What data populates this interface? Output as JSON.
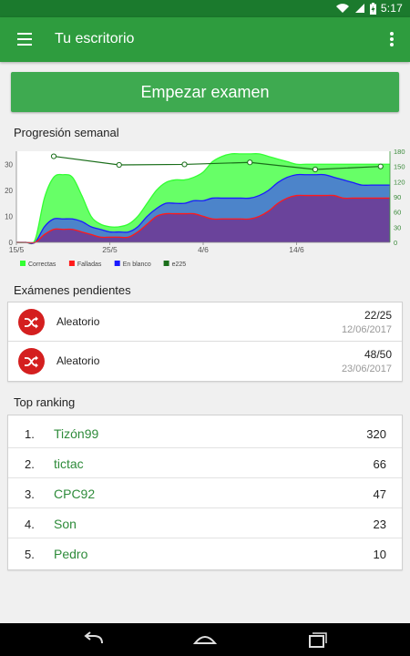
{
  "status_bar": {
    "time": "5:17",
    "battery_icon": "battery-charging-icon",
    "wifi_icon": "wifi-icon",
    "signal_icon": "signal-icon"
  },
  "app_bar": {
    "title": "Tu escritorio",
    "menu_icon": "hamburger-menu-icon",
    "overflow_icon": "more-vertical-icon"
  },
  "start_button": {
    "label": "Empezar examen"
  },
  "colors": {
    "status_bar": "#1b7a2d",
    "app_bar": "#2e9c3e",
    "button": "#3eaa50",
    "accent_red": "#d41f1f",
    "rank_green": "#2e8b3a"
  },
  "progress": {
    "title": "Progresión semanal",
    "chart_data": {
      "type": "area",
      "x": [
        0,
        1,
        2,
        3,
        4,
        5,
        6,
        7,
        8,
        9,
        10,
        11,
        12,
        13,
        14,
        15,
        16,
        17,
        18,
        19,
        20,
        21,
        22,
        23,
        24,
        25,
        26,
        27,
        28,
        29,
        30,
        31,
        32,
        33,
        34,
        35,
        36,
        37,
        38,
        39,
        40
      ],
      "x_ticks": [
        {
          "x": 0,
          "label": "15/5"
        },
        {
          "x": 10,
          "label": "25/5"
        },
        {
          "x": 20,
          "label": "4/6"
        },
        {
          "x": 30,
          "label": "14/6"
        }
      ],
      "ylim_left": [
        0,
        35
      ],
      "y_ticks_left": [
        0,
        10,
        20,
        30
      ],
      "ylim_right": [
        0,
        180
      ],
      "y_ticks_right": [
        0,
        30,
        60,
        90,
        120,
        150,
        180
      ],
      "series": [
        {
          "name": "Correctas",
          "color": "#33ff33",
          "axis": "left",
          "values": [
            0,
            0,
            1,
            17,
            25,
            26,
            25,
            18,
            10,
            7,
            6,
            6,
            7,
            10,
            15,
            20,
            23,
            24,
            24,
            25,
            27,
            31,
            33,
            34,
            34,
            34,
            34,
            33,
            32,
            31,
            30,
            30,
            30,
            30,
            30,
            30,
            30,
            30,
            30,
            30,
            30
          ]
        },
        {
          "name": "En blanco",
          "color": "#1a1aff",
          "axis": "left",
          "values": [
            0,
            0,
            0,
            6,
            9,
            9,
            9,
            8,
            6,
            5,
            4,
            4,
            4,
            6,
            10,
            13,
            15,
            15,
            15,
            16,
            16,
            17,
            17,
            17,
            17,
            17,
            18,
            20,
            23,
            25,
            26,
            26,
            26,
            26,
            25,
            24,
            23,
            22,
            22,
            22,
            22
          ]
        },
        {
          "name": "Falladas",
          "color": "#ff1a1a",
          "axis": "left",
          "values": [
            0,
            0,
            0,
            3,
            5,
            5,
            5,
            4,
            3,
            2,
            2,
            2,
            2,
            4,
            7,
            10,
            11,
            11,
            11,
            11,
            10,
            9,
            9,
            9,
            9,
            9,
            10,
            12,
            15,
            17,
            18,
            18,
            18,
            18,
            18,
            17,
            17,
            17,
            17,
            17,
            17
          ]
        },
        {
          "name": "e225",
          "color": "#1a6e1a",
          "axis": "right",
          "markers": true,
          "points": [
            [
              4,
              170
            ],
            [
              11,
              153
            ],
            [
              18,
              154
            ],
            [
              25,
              158
            ],
            [
              32,
              144
            ],
            [
              39,
              150
            ]
          ]
        }
      ],
      "legend": [
        "Correctas",
        "Falladas",
        "En blanco",
        "e225"
      ],
      "legend_position": "bottom-left",
      "grid": false
    }
  },
  "pending_exams": {
    "title": "Exámenes pendientes",
    "icon": "shuffle-icon",
    "items": [
      {
        "name": "Aleatorio",
        "count": "22/25",
        "date": "12/06/2017"
      },
      {
        "name": "Aleatorio",
        "count": "48/50",
        "date": "23/06/2017"
      }
    ]
  },
  "ranking": {
    "title": "Top ranking",
    "items": [
      {
        "pos": "1.",
        "name": "Tizón99",
        "score": "320"
      },
      {
        "pos": "2.",
        "name": "tictac",
        "score": "66"
      },
      {
        "pos": "3.",
        "name": "CPC92",
        "score": "47"
      },
      {
        "pos": "4.",
        "name": "Son",
        "score": "23"
      },
      {
        "pos": "5.",
        "name": "Pedro",
        "score": "10"
      }
    ]
  },
  "nav_bar": {
    "back_icon": "back-icon",
    "home_icon": "home-icon",
    "recents_icon": "recents-icon"
  }
}
